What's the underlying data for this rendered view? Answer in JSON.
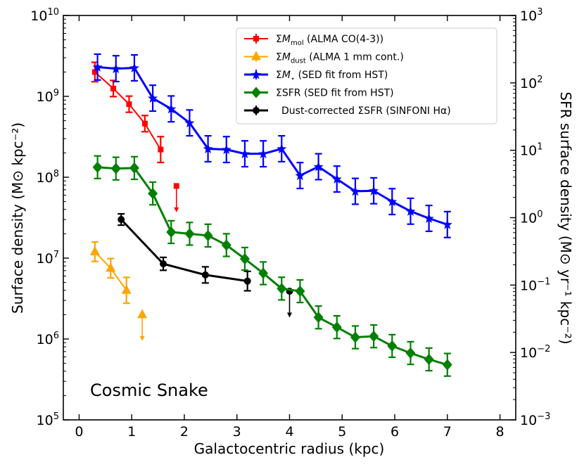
{
  "chart_data": {
    "type": "line",
    "title": "",
    "annotation": "Cosmic Snake",
    "xlabel": "Galactocentric radius (kpc)",
    "ylabel_left": "Surface density (M⊙ kpc⁻²)",
    "ylabel_right": "SFR surface density (M⊙ yr⁻¹ kpc⁻²)",
    "xlim": [
      -0.3,
      8.3
    ],
    "ylim_left": [
      100000,
      10000000000
    ],
    "ylim_right": [
      0.001,
      1000
    ],
    "yscale": "log",
    "x_ticks": [
      {
        "value": 0,
        "label": "0"
      },
      {
        "value": 1,
        "label": "1"
      },
      {
        "value": 2,
        "label": "2"
      },
      {
        "value": 3,
        "label": "3"
      },
      {
        "value": 4,
        "label": "4"
      },
      {
        "value": 5,
        "label": "5"
      },
      {
        "value": 6,
        "label": "6"
      },
      {
        "value": 7,
        "label": "7"
      },
      {
        "value": 8,
        "label": "8"
      }
    ],
    "y_left_ticks": [
      {
        "exp": 5,
        "base": "10",
        "sup": "5"
      },
      {
        "exp": 6,
        "base": "10",
        "sup": "6"
      },
      {
        "exp": 7,
        "base": "10",
        "sup": "7"
      },
      {
        "exp": 8,
        "base": "10",
        "sup": "8"
      },
      {
        "exp": 9,
        "base": "10",
        "sup": "9"
      },
      {
        "exp": 10,
        "base": "10",
        "sup": "10"
      }
    ],
    "y_right_ticks": [
      {
        "exp": -3,
        "base": "10",
        "sup": "−3"
      },
      {
        "exp": -2,
        "base": "10",
        "sup": "−2"
      },
      {
        "exp": -1,
        "base": "10",
        "sup": "−1"
      },
      {
        "exp": 0,
        "base": "10",
        "sup": "0"
      },
      {
        "exp": 1,
        "base": "10",
        "sup": "1"
      },
      {
        "exp": 2,
        "base": "10",
        "sup": "2"
      },
      {
        "exp": 3,
        "base": "10",
        "sup": "3"
      }
    ],
    "legend_position": "top-right",
    "legend": [
      {
        "series": "mol",
        "label": "ΣM_mol (ALMA CO(4-3))"
      },
      {
        "series": "dust",
        "label": "ΣM_dust (ALMA 1 mm cont.)"
      },
      {
        "series": "star",
        "label": "ΣM⋆ (SED fit from HST)"
      },
      {
        "series": "sfr",
        "label": "ΣSFR (SED fit from HST)"
      },
      {
        "series": "ha",
        "label": "Dust-corrected ΣSFR (SINFONI Hα)"
      }
    ],
    "series": [
      {
        "id": "mol",
        "name": "ΣM_mol (ALMA CO(4-3))",
        "color": "#ff0000",
        "marker": "square",
        "axis": "left",
        "points": [
          {
            "x": 0.3,
            "y": 2000000000.0,
            "err": 0.12
          },
          {
            "x": 0.65,
            "y": 1250000000.0,
            "err": 0.1
          },
          {
            "x": 0.95,
            "y": 800000000.0,
            "err": 0.1
          },
          {
            "x": 1.25,
            "y": 460000000.0,
            "err": 0.1
          },
          {
            "x": 1.55,
            "y": 220000000.0,
            "err": 0.16
          }
        ],
        "upper_limits": [
          {
            "x": 1.85,
            "y": 78000000.0
          }
        ]
      },
      {
        "id": "dust",
        "name": "ΣM_dust (ALMA 1 mm cont.)",
        "color": "#ffa500",
        "marker": "triangle",
        "axis": "left",
        "points": [
          {
            "x": 0.3,
            "y": 12000000.0,
            "err": 0.12
          },
          {
            "x": 0.6,
            "y": 7500000.0,
            "err": 0.12
          },
          {
            "x": 0.9,
            "y": 4000000.0,
            "err": 0.16
          }
        ],
        "upper_limits": [
          {
            "x": 1.2,
            "y": 2000000.0
          }
        ]
      },
      {
        "id": "star",
        "name": "ΣM⋆ (SED fit from HST)",
        "color": "#0000ff",
        "marker": "star",
        "axis": "left",
        "points": [
          {
            "x": 0.35,
            "y": 2300000000.0,
            "err": 0.16
          },
          {
            "x": 0.7,
            "y": 2200000000.0,
            "err": 0.16
          },
          {
            "x": 1.05,
            "y": 2250000000.0,
            "err": 0.16
          },
          {
            "x": 1.4,
            "y": 950000000.0,
            "err": 0.16
          },
          {
            "x": 1.75,
            "y": 700000000.0,
            "err": 0.16
          },
          {
            "x": 2.1,
            "y": 470000000.0,
            "err": 0.16
          },
          {
            "x": 2.45,
            "y": 225000000.0,
            "err": 0.16
          },
          {
            "x": 2.8,
            "y": 220000000.0,
            "err": 0.16
          },
          {
            "x": 3.15,
            "y": 195000000.0,
            "err": 0.16
          },
          {
            "x": 3.5,
            "y": 195000000.0,
            "err": 0.16
          },
          {
            "x": 3.85,
            "y": 225000000.0,
            "err": 0.16
          },
          {
            "x": 4.2,
            "y": 105000000.0,
            "err": 0.16
          },
          {
            "x": 4.55,
            "y": 135000000.0,
            "err": 0.16
          },
          {
            "x": 4.9,
            "y": 95000000.0,
            "err": 0.16
          },
          {
            "x": 5.25,
            "y": 67000000.0,
            "err": 0.16
          },
          {
            "x": 5.6,
            "y": 68000000.0,
            "err": 0.16
          },
          {
            "x": 5.95,
            "y": 50000000.0,
            "err": 0.16
          },
          {
            "x": 6.3,
            "y": 38000000.0,
            "err": 0.16
          },
          {
            "x": 6.65,
            "y": 31000000.0,
            "err": 0.16
          },
          {
            "x": 7.0,
            "y": 26000000.0,
            "err": 0.16
          }
        ]
      },
      {
        "id": "sfr",
        "name": "ΣSFR (SED fit from HST)",
        "color": "#008000",
        "marker": "diamond",
        "axis": "left",
        "points": [
          {
            "x": 0.35,
            "y": 133000000.0,
            "err": 0.14
          },
          {
            "x": 0.7,
            "y": 128000000.0,
            "err": 0.14
          },
          {
            "x": 1.05,
            "y": 130000000.0,
            "err": 0.14
          },
          {
            "x": 1.4,
            "y": 63000000.0,
            "err": 0.14
          },
          {
            "x": 1.75,
            "y": 21000000.0,
            "err": 0.14
          },
          {
            "x": 2.1,
            "y": 20000000.0,
            "err": 0.14
          },
          {
            "x": 2.45,
            "y": 19000000.0,
            "err": 0.14
          },
          {
            "x": 2.8,
            "y": 14500000.0,
            "err": 0.14
          },
          {
            "x": 3.15,
            "y": 9800000.0,
            "err": 0.14
          },
          {
            "x": 3.5,
            "y": 6500000.0,
            "err": 0.14
          },
          {
            "x": 3.85,
            "y": 4200000.0,
            "err": 0.14
          },
          {
            "x": 4.2,
            "y": 3900000.0,
            "err": 0.14
          },
          {
            "x": 4.55,
            "y": 1850000.0,
            "err": 0.14
          },
          {
            "x": 4.9,
            "y": 1400000.0,
            "err": 0.14
          },
          {
            "x": 5.25,
            "y": 1050000.0,
            "err": 0.14
          },
          {
            "x": 5.6,
            "y": 1080000.0,
            "err": 0.14
          },
          {
            "x": 5.95,
            "y": 820000.0,
            "err": 0.14
          },
          {
            "x": 6.3,
            "y": 670000.0,
            "err": 0.14
          },
          {
            "x": 6.65,
            "y": 560000.0,
            "err": 0.14
          },
          {
            "x": 7.0,
            "y": 480000.0,
            "err": 0.14
          }
        ]
      },
      {
        "id": "ha",
        "name": "Dust-corrected ΣSFR (SINFONI Hα)",
        "color": "#000000",
        "marker": "circle",
        "axis": "left",
        "points": [
          {
            "x": 0.8,
            "y": 30000000.0,
            "err": 0.07
          },
          {
            "x": 1.6,
            "y": 8500000.0,
            "err": 0.08
          },
          {
            "x": 2.4,
            "y": 6200000.0,
            "err": 0.1
          },
          {
            "x": 3.2,
            "y": 5200000.0,
            "err": 0.12
          }
        ],
        "upper_limits": [
          {
            "x": 4.0,
            "y": 3900000.0
          }
        ]
      }
    ]
  }
}
